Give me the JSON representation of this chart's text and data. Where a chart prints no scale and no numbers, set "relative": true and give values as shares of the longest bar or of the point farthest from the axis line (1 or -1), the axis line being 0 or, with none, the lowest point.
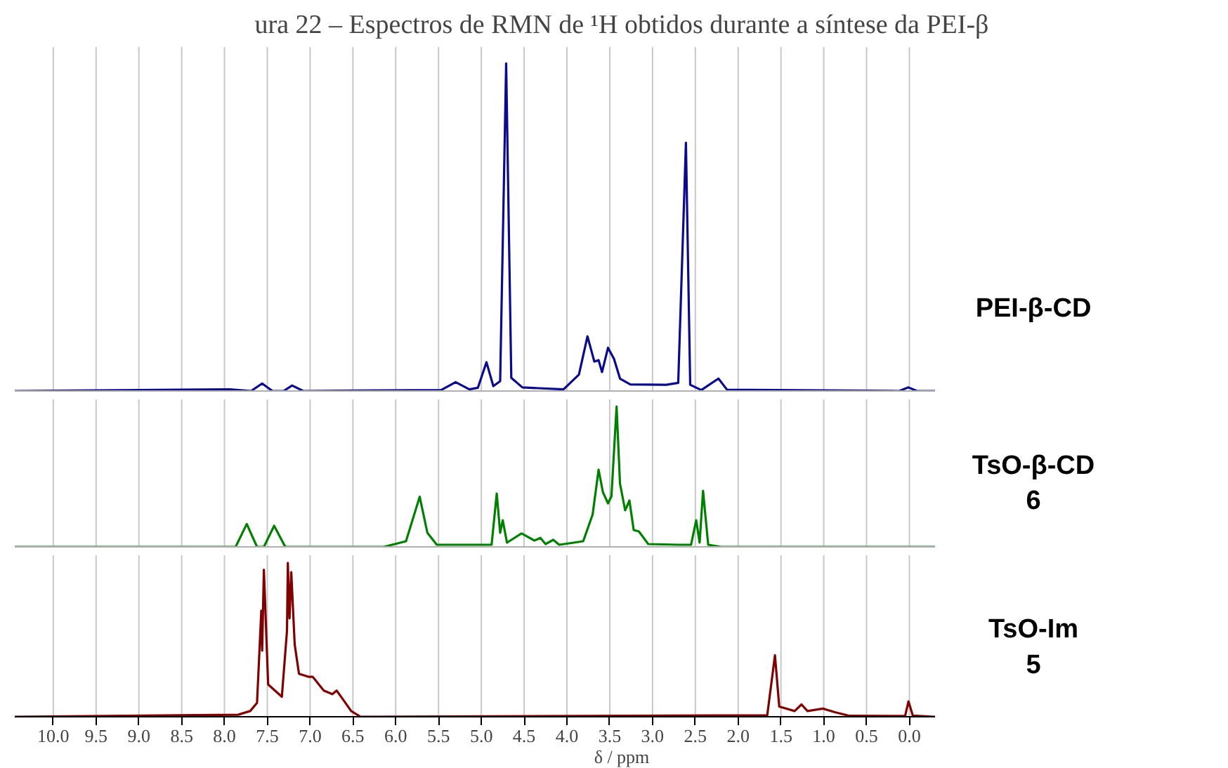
{
  "chart_data": [
    {
      "type": "line",
      "title": "ura 22 – Espectros de RMN de ¹H obtidos durante a síntese da PEI-β",
      "relative": true,
      "xlim": [
        10.45,
        -0.3
      ],
      "tick_labels": false,
      "grid": "x",
      "xticks": [
        10,
        9.5,
        9,
        8.5,
        8,
        7.5,
        7,
        6.5,
        6,
        5.5,
        5,
        4.5,
        4,
        3.5,
        3,
        2.5,
        2,
        1.5,
        1,
        0.5,
        0
      ],
      "series": [
        {
          "name": "PEI-β-CD",
          "color": "#0a0a8c",
          "x": [
            10.45,
            7.94,
            7.69,
            7.56,
            7.44,
            7.31,
            7.21,
            7.08,
            5.47,
            5.3,
            5.14,
            5.04,
            4.94,
            4.86,
            4.78,
            4.71,
            4.65,
            4.52,
            4.04,
            3.86,
            3.76,
            3.68,
            3.63,
            3.59,
            3.52,
            3.45,
            3.38,
            3.26,
            2.84,
            2.7,
            2.61,
            2.56,
            2.43,
            2.23,
            2.13,
            0.12,
            0.01,
            -0.09,
            -0.3
          ],
          "values": [
            0,
            0.005,
            0,
            0.023,
            0,
            0,
            0.017,
            0,
            0.003,
            0.027,
            0.005,
            0.01,
            0.088,
            0.015,
            0.03,
            1,
            0.04,
            0.011,
            0.005,
            0.05,
            0.167,
            0.09,
            0.094,
            0.058,
            0.132,
            0.098,
            0.038,
            0.02,
            0.019,
            0.025,
            0.758,
            0.019,
            0.003,
            0.038,
            0.004,
            0,
            0.011,
            0,
            0
          ]
        }
      ]
    },
    {
      "type": "line",
      "relative": true,
      "xlim": [
        10.45,
        -0.3
      ],
      "tick_labels": false,
      "grid": "x",
      "xticks": [
        10,
        9.5,
        9,
        8.5,
        8,
        7.5,
        7,
        6.5,
        6,
        5.5,
        5,
        4.5,
        4,
        3.5,
        3,
        2.5,
        2,
        1.5,
        1,
        0.5,
        0
      ],
      "series": [
        {
          "name": "TsO-β-CD\n6",
          "color": "#008000",
          "x": [
            10.45,
            7.87,
            7.74,
            7.62,
            7.54,
            7.42,
            7.29,
            6.14,
            5.88,
            5.72,
            5.63,
            5.52,
            4.88,
            4.82,
            4.78,
            4.75,
            4.7,
            4.53,
            4.38,
            4.31,
            4.25,
            4.16,
            4.09,
            3.81,
            3.7,
            3.63,
            3.58,
            3.52,
            3.48,
            3.42,
            3.38,
            3.32,
            3.27,
            3.22,
            3.16,
            3.05,
            2.69,
            2.55,
            2.49,
            2.45,
            2.41,
            2.35,
            2.2,
            -0.3
          ],
          "values": [
            0,
            0,
            0.163,
            0,
            0,
            0.15,
            0,
            0,
            0.04,
            0.357,
            0.1,
            0.015,
            0.015,
            0.38,
            0.1,
            0.19,
            0.03,
            0.096,
            0.045,
            0.064,
            0.02,
            0.05,
            0.015,
            0.04,
            0.23,
            0.55,
            0.39,
            0.31,
            0.36,
            1,
            0.45,
            0.26,
            0.33,
            0.12,
            0.11,
            0.02,
            0.015,
            0.015,
            0.19,
            0.03,
            0.4,
            0.015,
            0,
            0
          ]
        }
      ]
    },
    {
      "type": "line",
      "relative": true,
      "xlim": [
        10.45,
        -0.3
      ],
      "xlabel": "δ / ppm",
      "tick_labels": "x",
      "grid": "x",
      "xticks": [
        {
          "value": 10,
          "label": "10.0"
        },
        9.5,
        {
          "value": 9,
          "label": "9.0"
        },
        8.5,
        {
          "value": 8,
          "label": "8.0"
        },
        7.5,
        {
          "value": 7,
          "label": "7.0"
        },
        6.5,
        {
          "value": 6,
          "label": "6.0"
        },
        5.5,
        {
          "value": 5,
          "label": "5.0"
        },
        4.5,
        {
          "value": 4,
          "label": "4.0"
        },
        3.5,
        {
          "value": 3,
          "label": "3.0"
        },
        2.5,
        {
          "value": 2,
          "label": "2.0"
        },
        1.5,
        {
          "value": 1,
          "label": "1.0"
        },
        0.5,
        {
          "value": 0,
          "label": "0.0"
        }
      ],
      "series": [
        {
          "name": "TsO-Im\n5",
          "color": "#800000",
          "x": [
            10.45,
            7.84,
            7.7,
            7.62,
            7.57,
            7.56,
            7.54,
            7.49,
            7.33,
            7.27,
            7.26,
            7.24,
            7.22,
            7.18,
            7.13,
            7.02,
            6.97,
            6.84,
            6.74,
            6.69,
            6.63,
            6.52,
            6.41,
            1.66,
            1.57,
            1.52,
            1.34,
            1.26,
            1.19,
            1.01,
            0.87,
            0.7,
            0.05,
            0.01,
            -0.04,
            -0.3
          ],
          "values": [
            0,
            0.013,
            0.037,
            0.09,
            0.69,
            0.43,
            0.956,
            0.21,
            0.13,
            0.56,
            1,
            0.64,
            0.94,
            0.47,
            0.28,
            0.26,
            0.26,
            0.17,
            0.147,
            0.17,
            0.124,
            0.037,
            0,
            0.01,
            0.4,
            0.066,
            0.037,
            0.08,
            0.037,
            0.053,
            0.03,
            0.006,
            0.005,
            0.1,
            0.008,
            0
          ]
        }
      ]
    }
  ]
}
